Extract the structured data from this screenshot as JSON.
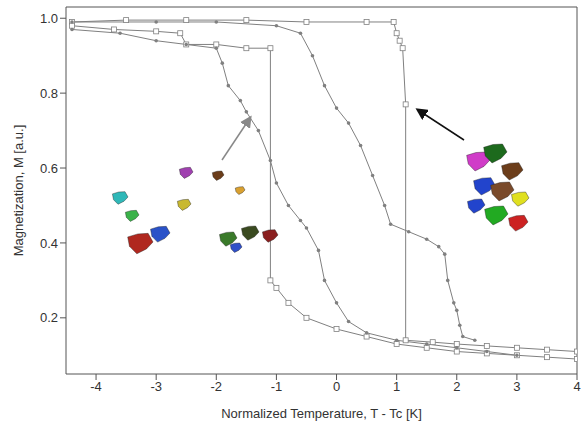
{
  "chart_data": {
    "type": "line",
    "x_label": "Normalized Temperature, T - Tc [K]",
    "y_label": "Magnetization, M [a.u.]",
    "xlim": [
      -4.5,
      4
    ],
    "xticks": [
      -4,
      -3,
      -2,
      -1,
      0,
      1,
      2,
      3,
      4
    ],
    "ylim": [
      0.05,
      1.03
    ],
    "yticks": [
      0.2,
      0.4,
      0.6,
      0.8,
      {
        "value": 1,
        "label": "1.0"
      }
    ],
    "series": [
      {
        "color": "#808080",
        "marker": "square",
        "x": [
          -4.4,
          -3.5,
          -2.5,
          -1.5,
          -0.5,
          0.5,
          0.95,
          1.0,
          1.05,
          1.1,
          1.15,
          1.15,
          1.6,
          2.0,
          2.5,
          3.0,
          3.5,
          4.0
        ],
        "values": [
          0.99,
          0.995,
          0.995,
          0.995,
          0.99,
          0.99,
          0.99,
          0.96,
          0.94,
          0.92,
          0.77,
          0.14,
          0.135,
          0.13,
          0.125,
          0.12,
          0.115,
          0.11
        ]
      },
      {
        "color": "#808080",
        "marker": "square",
        "x": [
          4.0,
          3.5,
          3.0,
          2.5,
          2.0,
          1.5,
          1.0,
          0.5,
          0.0,
          -0.5,
          -0.8,
          -1.0,
          -1.1,
          -1.1,
          -1.5,
          -2.0,
          -2.5,
          -2.6,
          -3.0,
          -3.7,
          -4.4
        ],
        "values": [
          0.09,
          0.095,
          0.1,
          0.105,
          0.11,
          0.12,
          0.13,
          0.15,
          0.17,
          0.2,
          0.24,
          0.28,
          0.3,
          0.92,
          0.92,
          0.93,
          0.93,
          0.96,
          0.965,
          0.97,
          0.98
        ]
      },
      {
        "color": "#808080",
        "marker": "circle",
        "x": [
          -4.4,
          -3,
          -2,
          -1,
          -0.6,
          -0.4,
          -0.2,
          0,
          0.2,
          0.4,
          0.6,
          0.8,
          0.9,
          1.2,
          1.5,
          1.7,
          1.8,
          1.85,
          1.95,
          2.0,
          2.05,
          2.1,
          2.3
        ],
        "values": [
          0.99,
          0.99,
          0.99,
          0.98,
          0.96,
          0.9,
          0.82,
          0.76,
          0.72,
          0.66,
          0.58,
          0.5,
          0.45,
          0.43,
          0.41,
          0.39,
          0.37,
          0.3,
          0.24,
          0.22,
          0.18,
          0.15,
          0.14
        ]
      },
      {
        "color": "#808080",
        "marker": "circle",
        "x": [
          3.0,
          2.5,
          2.0,
          1.5,
          1.0,
          0.5,
          0.2,
          0,
          -0.2,
          -0.3,
          -0.5,
          -0.6,
          -0.8,
          -1.0,
          -1.1,
          -1.3,
          -1.5,
          -1.6,
          -1.8,
          -1.9,
          -2.0,
          -2.5,
          -3.0,
          -3.6,
          -4.4
        ],
        "values": [
          0.1,
          0.11,
          0.12,
          0.13,
          0.14,
          0.16,
          0.19,
          0.24,
          0.3,
          0.38,
          0.44,
          0.46,
          0.5,
          0.56,
          0.62,
          0.7,
          0.75,
          0.78,
          0.82,
          0.88,
          0.92,
          0.93,
          0.94,
          0.96,
          0.97
        ]
      }
    ]
  }
}
